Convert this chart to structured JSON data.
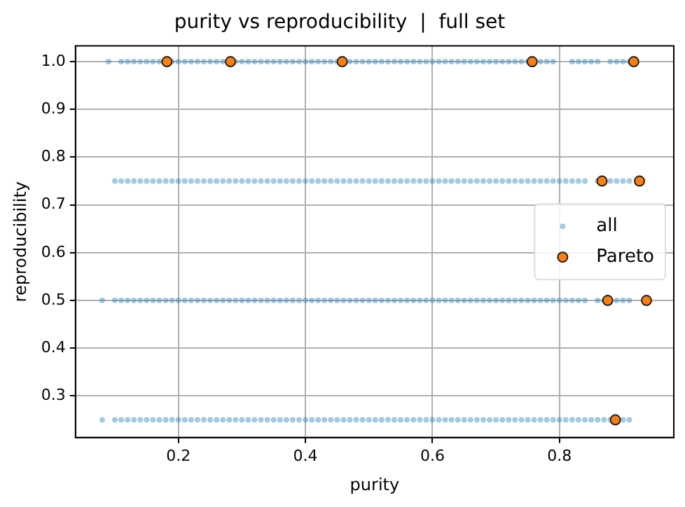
{
  "chart_data": {
    "type": "scatter",
    "title": "purity vs reproducibility  |  full set",
    "xlabel": "purity",
    "ylabel": "reproducibility",
    "xlim": [
      0.038,
      0.98
    ],
    "xticks": [
      0.2,
      0.4,
      0.6,
      0.8
    ],
    "ylim": [
      0.213,
      1.033
    ],
    "yticks": [
      0.3,
      0.4,
      0.5,
      0.6,
      0.7,
      0.8,
      0.9,
      {
        "value": 1,
        "label": "1.0"
      }
    ],
    "grid": true,
    "legend": "right",
    "marker": "circle",
    "series": [
      {
        "name": "all",
        "color": "#1f77b4",
        "x": [
          0.09,
          0.11,
          0.12,
          0.13,
          0.14,
          0.15,
          0.16,
          0.17,
          0.19,
          0.2,
          0.21,
          0.22,
          0.23,
          0.24,
          0.25,
          0.26,
          0.27,
          0.29,
          0.3,
          0.31,
          0.32,
          0.33,
          0.34,
          0.35,
          0.36,
          0.37,
          0.38,
          0.39,
          0.4,
          0.41,
          0.42,
          0.43,
          0.44,
          0.45,
          0.47,
          0.48,
          0.49,
          0.5,
          0.51,
          0.52,
          0.53,
          0.54,
          0.55,
          0.56,
          0.57,
          0.58,
          0.59,
          0.6,
          0.61,
          0.62,
          0.63,
          0.64,
          0.65,
          0.66,
          0.67,
          0.68,
          0.69,
          0.7,
          0.71,
          0.72,
          0.73,
          0.74,
          0.75,
          0.77,
          0.78,
          0.79,
          0.82,
          0.83,
          0.84,
          0.85,
          0.86,
          0.88,
          0.89,
          0.9,
          0.91,
          0.1,
          0.11,
          0.12,
          0.13,
          0.14,
          0.15,
          0.16,
          0.17,
          0.18,
          0.19,
          0.2,
          0.21,
          0.22,
          0.23,
          0.24,
          0.25,
          0.26,
          0.27,
          0.28,
          0.29,
          0.3,
          0.31,
          0.32,
          0.33,
          0.34,
          0.35,
          0.36,
          0.37,
          0.38,
          0.39,
          0.4,
          0.41,
          0.42,
          0.43,
          0.44,
          0.45,
          0.46,
          0.47,
          0.48,
          0.49,
          0.5,
          0.51,
          0.52,
          0.53,
          0.54,
          0.55,
          0.56,
          0.57,
          0.58,
          0.59,
          0.6,
          0.61,
          0.62,
          0.63,
          0.64,
          0.65,
          0.66,
          0.67,
          0.68,
          0.69,
          0.7,
          0.71,
          0.72,
          0.73,
          0.74,
          0.75,
          0.76,
          0.77,
          0.78,
          0.79,
          0.8,
          0.81,
          0.82,
          0.83,
          0.84,
          0.86,
          0.88,
          0.89,
          0.9,
          0.91,
          0.08,
          0.1,
          0.11,
          0.12,
          0.13,
          0.14,
          0.15,
          0.16,
          0.17,
          0.18,
          0.19,
          0.2,
          0.21,
          0.22,
          0.23,
          0.24,
          0.25,
          0.26,
          0.27,
          0.28,
          0.29,
          0.3,
          0.31,
          0.32,
          0.33,
          0.34,
          0.35,
          0.36,
          0.37,
          0.38,
          0.39,
          0.4,
          0.41,
          0.42,
          0.43,
          0.44,
          0.45,
          0.46,
          0.47,
          0.48,
          0.49,
          0.5,
          0.51,
          0.52,
          0.53,
          0.54,
          0.55,
          0.56,
          0.57,
          0.58,
          0.59,
          0.6,
          0.61,
          0.62,
          0.63,
          0.64,
          0.65,
          0.66,
          0.67,
          0.68,
          0.69,
          0.7,
          0.71,
          0.72,
          0.73,
          0.74,
          0.75,
          0.76,
          0.77,
          0.78,
          0.79,
          0.8,
          0.81,
          0.82,
          0.83,
          0.84,
          0.86,
          0.87,
          0.89,
          0.9,
          0.91,
          0.08,
          0.1,
          0.11,
          0.12,
          0.13,
          0.14,
          0.15,
          0.16,
          0.17,
          0.18,
          0.19,
          0.2,
          0.21,
          0.22,
          0.23,
          0.24,
          0.25,
          0.26,
          0.27,
          0.28,
          0.29,
          0.3,
          0.31,
          0.32,
          0.33,
          0.34,
          0.35,
          0.36,
          0.37,
          0.38,
          0.39,
          0.4,
          0.41,
          0.42,
          0.43,
          0.44,
          0.45,
          0.46,
          0.47,
          0.48,
          0.49,
          0.5,
          0.51,
          0.52,
          0.53,
          0.54,
          0.55,
          0.56,
          0.57,
          0.58,
          0.59,
          0.6,
          0.61,
          0.62,
          0.63,
          0.64,
          0.65,
          0.66,
          0.67,
          0.68,
          0.69,
          0.7,
          0.71,
          0.72,
          0.73,
          0.74,
          0.75,
          0.76,
          0.77,
          0.78,
          0.79,
          0.8,
          0.81,
          0.82,
          0.83,
          0.84,
          0.85,
          0.86,
          0.87,
          0.88,
          0.9,
          0.91
        ],
        "values": [
          1,
          1,
          1,
          1,
          1,
          1,
          1,
          1,
          1,
          1,
          1,
          1,
          1,
          1,
          1,
          1,
          1,
          1,
          1,
          1,
          1,
          1,
          1,
          1,
          1,
          1,
          1,
          1,
          1,
          1,
          1,
          1,
          1,
          1,
          1,
          1,
          1,
          1,
          1,
          1,
          1,
          1,
          1,
          1,
          1,
          1,
          1,
          1,
          1,
          1,
          1,
          1,
          1,
          1,
          1,
          1,
          1,
          1,
          1,
          1,
          1,
          1,
          1,
          1,
          1,
          1,
          1,
          1,
          1,
          1,
          1,
          1,
          1,
          1,
          1,
          0.75,
          0.75,
          0.75,
          0.75,
          0.75,
          0.75,
          0.75,
          0.75,
          0.75,
          0.75,
          0.75,
          0.75,
          0.75,
          0.75,
          0.75,
          0.75,
          0.75,
          0.75,
          0.75,
          0.75,
          0.75,
          0.75,
          0.75,
          0.75,
          0.75,
          0.75,
          0.75,
          0.75,
          0.75,
          0.75,
          0.75,
          0.75,
          0.75,
          0.75,
          0.75,
          0.75,
          0.75,
          0.75,
          0.75,
          0.75,
          0.75,
          0.75,
          0.75,
          0.75,
          0.75,
          0.75,
          0.75,
          0.75,
          0.75,
          0.75,
          0.75,
          0.75,
          0.75,
          0.75,
          0.75,
          0.75,
          0.75,
          0.75,
          0.75,
          0.75,
          0.75,
          0.75,
          0.75,
          0.75,
          0.75,
          0.75,
          0.75,
          0.75,
          0.75,
          0.75,
          0.75,
          0.75,
          0.75,
          0.75,
          0.75,
          0.75,
          0.75,
          0.75,
          0.75,
          0.75,
          0.5,
          0.5,
          0.5,
          0.5,
          0.5,
          0.5,
          0.5,
          0.5,
          0.5,
          0.5,
          0.5,
          0.5,
          0.5,
          0.5,
          0.5,
          0.5,
          0.5,
          0.5,
          0.5,
          0.5,
          0.5,
          0.5,
          0.5,
          0.5,
          0.5,
          0.5,
          0.5,
          0.5,
          0.5,
          0.5,
          0.5,
          0.5,
          0.5,
          0.5,
          0.5,
          0.5,
          0.5,
          0.5,
          0.5,
          0.5,
          0.5,
          0.5,
          0.5,
          0.5,
          0.5,
          0.5,
          0.5,
          0.5,
          0.5,
          0.5,
          0.5,
          0.5,
          0.5,
          0.5,
          0.5,
          0.5,
          0.5,
          0.5,
          0.5,
          0.5,
          0.5,
          0.5,
          0.5,
          0.5,
          0.5,
          0.5,
          0.5,
          0.5,
          0.5,
          0.5,
          0.5,
          0.5,
          0.5,
          0.5,
          0.5,
          0.5,
          0.5,
          0.5,
          0.5,
          0.5,
          0.5,
          0.25,
          0.25,
          0.25,
          0.25,
          0.25,
          0.25,
          0.25,
          0.25,
          0.25,
          0.25,
          0.25,
          0.25,
          0.25,
          0.25,
          0.25,
          0.25,
          0.25,
          0.25,
          0.25,
          0.25,
          0.25,
          0.25,
          0.25,
          0.25,
          0.25,
          0.25,
          0.25,
          0.25,
          0.25,
          0.25,
          0.25,
          0.25,
          0.25,
          0.25,
          0.25,
          0.25,
          0.25,
          0.25,
          0.25,
          0.25,
          0.25,
          0.25,
          0.25,
          0.25,
          0.25,
          0.25,
          0.25,
          0.25,
          0.25,
          0.25,
          0.25,
          0.25,
          0.25,
          0.25,
          0.25,
          0.25,
          0.25,
          0.25,
          0.25,
          0.25,
          0.25,
          0.25,
          0.25,
          0.25,
          0.25,
          0.25,
          0.25,
          0.25,
          0.25,
          0.25,
          0.25,
          0.25,
          0.25,
          0.25,
          0.25,
          0.25,
          0.25,
          0.25,
          0.25,
          0.25,
          0.25,
          0.25
        ]
      },
      {
        "name": "Pareto",
        "color": "#ff7f0e",
        "x": [
          0.182,
          0.282,
          0.458,
          0.757,
          0.917,
          0.867,
          0.926,
          0.876,
          0.937,
          0.888
        ],
        "values": [
          1,
          1,
          1,
          1,
          1,
          0.75,
          0.75,
          0.5,
          0.5,
          0.25
        ]
      }
    ]
  }
}
